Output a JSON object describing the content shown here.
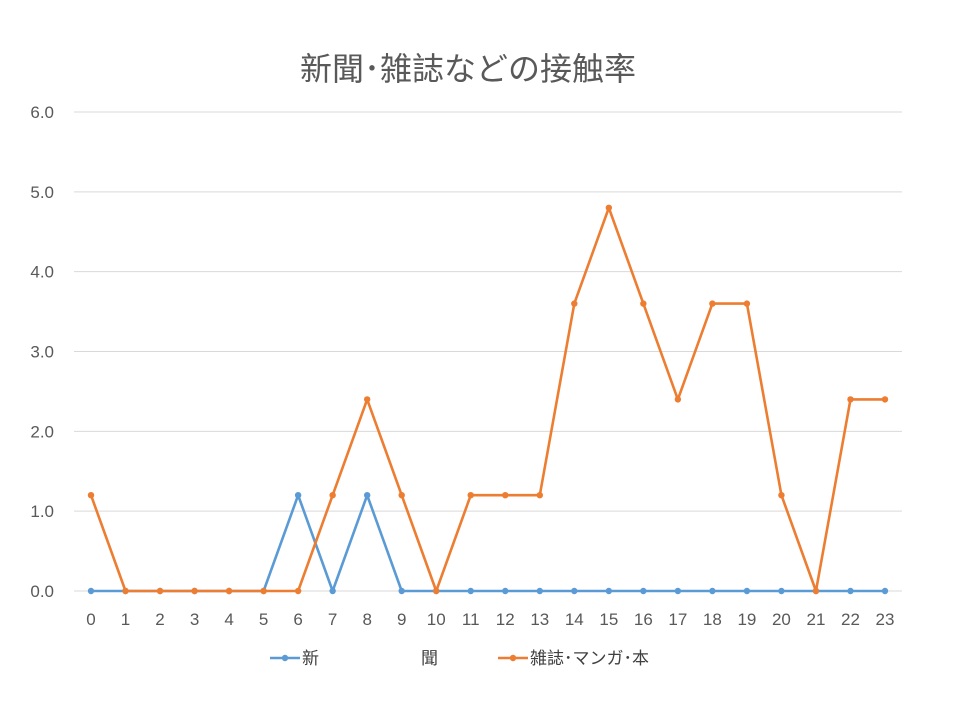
{
  "chart_data": {
    "type": "line",
    "title": "新聞･雑誌などの接触率",
    "x": [
      "0",
      "1",
      "2",
      "3",
      "4",
      "5",
      "6",
      "7",
      "8",
      "9",
      "10",
      "11",
      "12",
      "13",
      "14",
      "15",
      "16",
      "17",
      "18",
      "19",
      "20",
      "21",
      "22",
      "23"
    ],
    "ylim": [
      0,
      6.0
    ],
    "yticks": [
      "0.0",
      "1.0",
      "2.0",
      "3.0",
      "4.0",
      "5.0",
      "6.0"
    ],
    "grid": true,
    "legend_position": "bottom",
    "series": [
      {
        "name": "新　　　　　　聞",
        "color": "#5B9BD5",
        "values": [
          0,
          0,
          0,
          0,
          0,
          0,
          1.2,
          0,
          1.2,
          0,
          0,
          0,
          0,
          0,
          0,
          0,
          0,
          0,
          0,
          0,
          0,
          0,
          0,
          0
        ]
      },
      {
        "name": "雑誌･マンガ･本",
        "color": "#ED7D31",
        "values": [
          1.2,
          0,
          0,
          0,
          0,
          0,
          0,
          1.2,
          2.4,
          1.2,
          0,
          1.2,
          1.2,
          1.2,
          3.6,
          4.8,
          3.6,
          2.4,
          3.6,
          3.6,
          1.2,
          0,
          2.4,
          2.4
        ]
      }
    ]
  }
}
